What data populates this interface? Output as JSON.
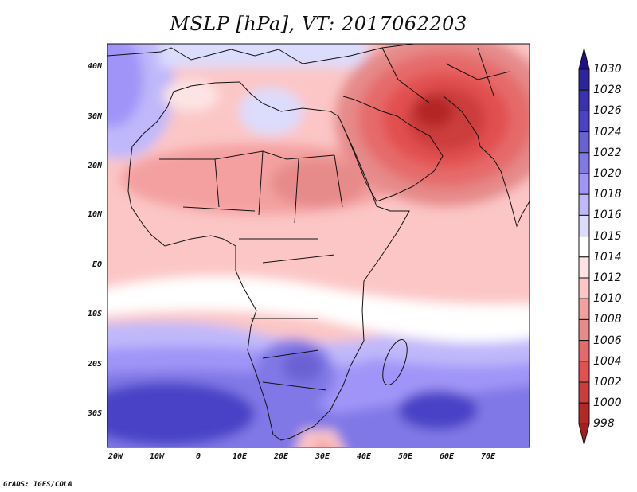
{
  "title": "MSLP [hPa], VT: 2017062203",
  "credit": "GrADS: IGES/COLA",
  "map": {
    "lon_range": [
      -22,
      80
    ],
    "lat_range": [
      -37,
      45
    ],
    "y_ticks": [
      "40N",
      "30N",
      "20N",
      "10N",
      "EQ",
      "10S",
      "20S",
      "30S"
    ],
    "x_ticks": [
      "20W",
      "10W",
      "0",
      "10E",
      "20E",
      "30E",
      "40E",
      "50E",
      "60E",
      "70E"
    ]
  },
  "colorbar": {
    "labels": [
      "1030",
      "1028",
      "1026",
      "1024",
      "1022",
      "1020",
      "1018",
      "1016",
      "1015",
      "1014",
      "1012",
      "1010",
      "1008",
      "1006",
      "1004",
      "1002",
      "1000",
      "998"
    ],
    "colors": [
      "#1e0f8c",
      "#2d24a0",
      "#3a30b4",
      "#4a42c6",
      "#6a62d4",
      "#8078e6",
      "#a094f8",
      "#c0b8fa",
      "#dcdcfc",
      "#ffffff",
      "#fde4e4",
      "#fcc6c6",
      "#f4a0a0",
      "#e68a8a",
      "#e66a6a",
      "#e25050",
      "#cc3c3c",
      "#b42828",
      "#a41e1e"
    ]
  }
}
